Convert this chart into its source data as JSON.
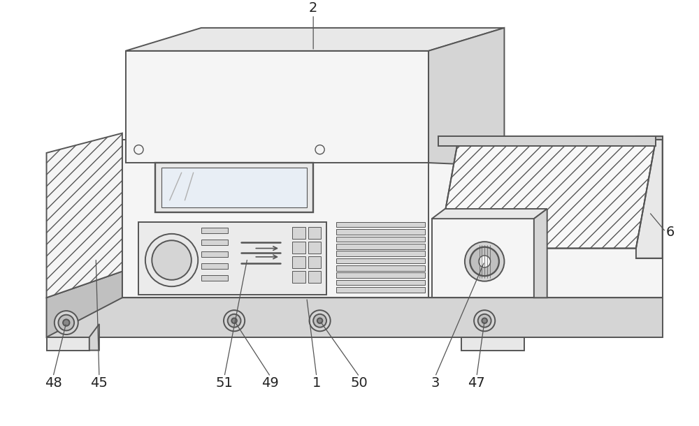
{
  "bg": "#ffffff",
  "lc": "#555555",
  "lw": 1.4,
  "fc_white": "#ffffff",
  "fc_light": "#f5f5f5",
  "fc_mid": "#e8e8e8",
  "fc_dark": "#d5d5d5",
  "fc_darker": "#c0c0c0",
  "fc_side": "#e0e0e0",
  "label_fs": 14,
  "label_color": "#222222"
}
